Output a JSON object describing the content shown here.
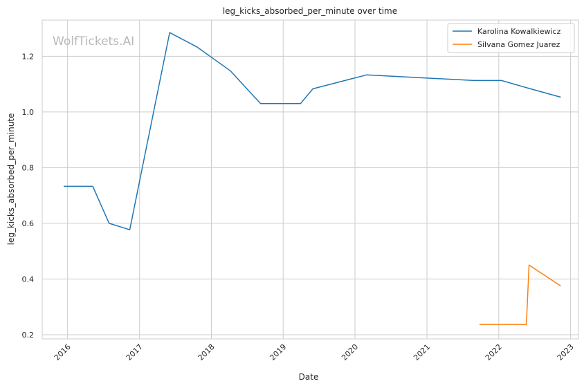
{
  "watermark": "WolfTickets.AI",
  "chart_data": {
    "type": "line",
    "title": "leg_kicks_absorbed_per_minute over time",
    "xlabel": "Date",
    "ylabel": "leg_kicks_absorbed_per_minute",
    "x_ticks": [
      "2016",
      "2017",
      "2018",
      "2019",
      "2020",
      "2021",
      "2022",
      "2023"
    ],
    "y_ticks": [
      "0.2",
      "0.4",
      "0.6",
      "0.8",
      "1.0",
      "1.2"
    ],
    "xlim": [
      "2015-08-25",
      "2023-02-10"
    ],
    "ylim": [
      0.185,
      1.33
    ],
    "grid": true,
    "legend_position": "top-right",
    "series": [
      {
        "name": "Karolina Kowalkiewicz",
        "color": "#1f77b4",
        "points": [
          [
            "2015-12-12",
            0.733
          ],
          [
            "2016-05-08",
            0.733
          ],
          [
            "2016-07-30",
            0.6
          ],
          [
            "2016-11-12",
            0.577
          ],
          [
            "2017-06-03",
            1.285
          ],
          [
            "2017-10-21",
            1.233
          ],
          [
            "2018-04-07",
            1.148
          ],
          [
            "2018-09-08",
            1.03
          ],
          [
            "2019-03-30",
            1.03
          ],
          [
            "2019-06-01",
            1.083
          ],
          [
            "2020-02-29",
            1.133
          ],
          [
            "2021-08-28",
            1.113
          ],
          [
            "2022-01-15",
            1.113
          ],
          [
            "2022-06-11",
            1.083
          ],
          [
            "2022-11-12",
            1.053
          ]
        ]
      },
      {
        "name": "Silvana Gomez Juarez",
        "color": "#ff7f0e",
        "points": [
          [
            "2021-09-25",
            0.237
          ],
          [
            "2022-05-21",
            0.237
          ],
          [
            "2022-06-04",
            0.45
          ],
          [
            "2022-11-12",
            0.375
          ]
        ]
      }
    ]
  }
}
